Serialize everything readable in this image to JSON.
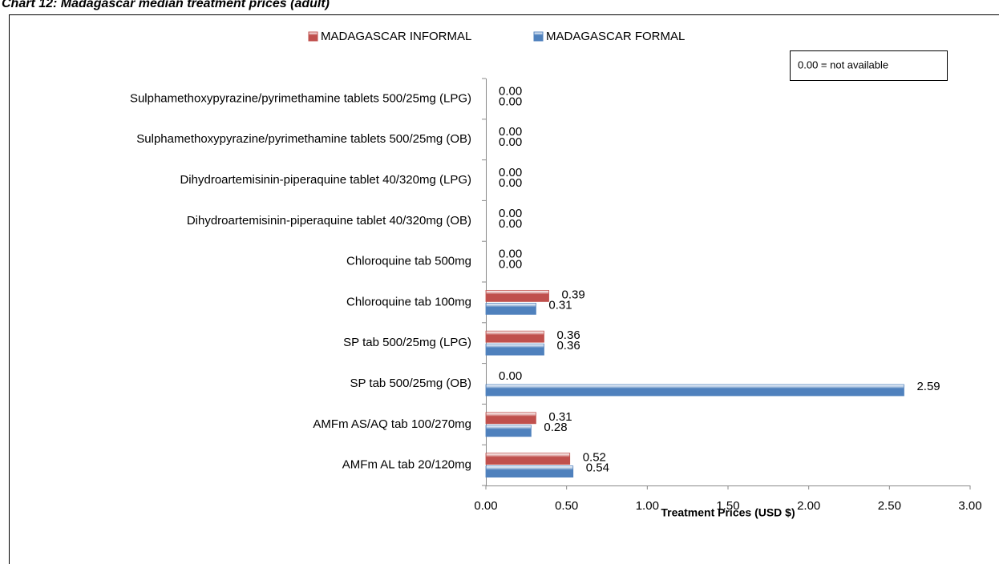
{
  "chart_data": {
    "type": "hbar",
    "title": "Chart 12: Madagascar median treatment prices (adult)",
    "annotation": "0.00 = not available",
    "x_label": "Treatment Prices (USD $)",
    "categories": [
      "Sulphamethoxypyrazine/pyrimethamine tablets 500/25mg (LPG)",
      "Sulphamethoxypyrazine/pyrimethamine tablets 500/25mg (OB)",
      "Dihydroartemisinin-piperaquine tablet 40/320mg (LPG)",
      "Dihydroartemisinin-piperaquine tablet 40/320mg (OB)",
      "Chloroquine tab 500mg",
      "Chloroquine tab 100mg",
      "SP tab 500/25mg (LPG)",
      "SP tab 500/25mg (OB)",
      "AMFm AS/AQ tab 100/270mg",
      "AMFm AL tab 20/120mg"
    ],
    "series": [
      {
        "name": "MADAGASCAR INFORMAL",
        "color": "#c0504d",
        "values": [
          0,
          0,
          0,
          0,
          0,
          0.39,
          0.36,
          0,
          0.31,
          0.52
        ],
        "value_labels": [
          "0.00",
          "0.00",
          "0.00",
          "0.00",
          "0.00",
          "0.39",
          "0.36",
          "0.00",
          "0.31",
          "0.52"
        ]
      },
      {
        "name": "MADAGASCAR FORMAL",
        "color": "#4f81bd",
        "values": [
          0,
          0,
          0,
          0,
          0,
          0.31,
          0.36,
          2.59,
          0.28,
          0.54
        ],
        "value_labels": [
          "0.00",
          "0.00",
          "0.00",
          "0.00",
          "0.00",
          "0.31",
          "0.36",
          "2.59",
          "0.28",
          "0.54"
        ]
      }
    ],
    "xlim": [
      0,
      3
    ],
    "xticks": [
      {
        "value": 0,
        "label": "0.00"
      },
      {
        "value": 0.5,
        "label": "0.50"
      },
      {
        "value": 1,
        "label": "1.00"
      },
      {
        "value": 1.5,
        "label": "1.50"
      },
      {
        "value": 2,
        "label": "2.00"
      },
      {
        "value": 2.5,
        "label": "2.50"
      },
      {
        "value": 3,
        "label": "3.00"
      }
    ],
    "legend": "top"
  }
}
